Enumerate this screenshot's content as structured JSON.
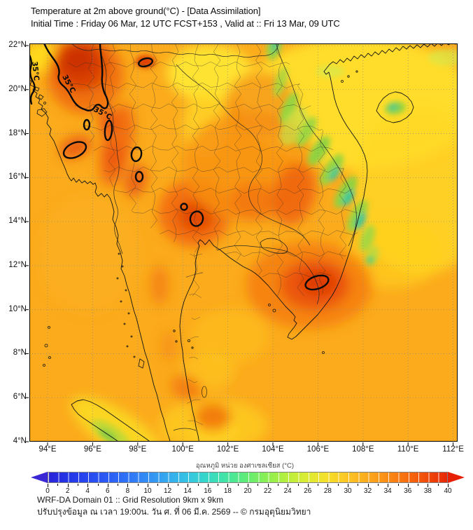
{
  "header": {
    "title": "Temperature at 2m above ground(°C) - [Data Assimilation]",
    "subtitle": "Initial Time : Friday 06 Mar, 12 UTC FCST+153 , Valid at :: Fri 13 Mar, 09 UTC"
  },
  "map": {
    "contour_label": "35°C",
    "lat_labels": [
      "22°N",
      "20°N",
      "18°N",
      "16°N",
      "14°N",
      "12°N",
      "10°N",
      "8°N",
      "6°N",
      "4°N"
    ],
    "lon_labels": [
      "94°E",
      "96°E",
      "98°E",
      "100°E",
      "102°E",
      "104°E",
      "106°E",
      "108°E",
      "110°E",
      "112°E"
    ]
  },
  "colorbar": {
    "label": "อุณหภูมิ หน่วย องศาเซลเซียส (°C)",
    "min": 0,
    "max": 40,
    "major_step": 2,
    "minor_step": 1,
    "ticks": [
      0,
      2,
      4,
      6,
      8,
      10,
      12,
      14,
      16,
      18,
      20,
      22,
      24,
      26,
      28,
      30,
      32,
      34,
      36,
      38,
      40
    ],
    "arrow_left_color": "#3a28d4",
    "arrow_right_color": "#e62004",
    "stops": [
      {
        "t": 0,
        "c": "#2a23d8"
      },
      {
        "t": 2,
        "c": "#2335e6"
      },
      {
        "t": 4,
        "c": "#2748ef"
      },
      {
        "t": 6,
        "c": "#2b5cf4"
      },
      {
        "t": 8,
        "c": "#2f74f6"
      },
      {
        "t": 10,
        "c": "#338ff4"
      },
      {
        "t": 12,
        "c": "#35aaee"
      },
      {
        "t": 14,
        "c": "#35c4e2"
      },
      {
        "t": 16,
        "c": "#37d9c6"
      },
      {
        "t": 18,
        "c": "#45e5a0"
      },
      {
        "t": 20,
        "c": "#63ec74"
      },
      {
        "t": 22,
        "c": "#8eef51"
      },
      {
        "t": 24,
        "c": "#b9ef3e"
      },
      {
        "t": 26,
        "c": "#ddeb33"
      },
      {
        "t": 28,
        "c": "#f6df2b"
      },
      {
        "t": 30,
        "c": "#fcc524"
      },
      {
        "t": 32,
        "c": "#fbaa1d"
      },
      {
        "t": 34,
        "c": "#f98c16"
      },
      {
        "t": 36,
        "c": "#f66c10"
      },
      {
        "t": 38,
        "c": "#f04a09"
      },
      {
        "t": 40,
        "c": "#e62706"
      }
    ]
  },
  "footer": {
    "line1": "WRF-DA Domain 01 :: Grid Resolution 9km x 9km",
    "line2": "ปรับปรุงข้อมูล ณ เวลา 19:00น. วัน ศ. ที่ 06 มี.ค. 2569 -- © กรมอุตุนิยมวิทยา"
  },
  "chart_data": {
    "type": "heatmap",
    "title": "Temperature at 2m above ground(°C) - [Data Assimilation]",
    "valid_time": "Fri 13 Mar, 09 UTC",
    "init_time": "Friday 06 Mar, 12 UTC",
    "forecast_hour": "FCST+153",
    "units": "°C",
    "lon_range": [
      93.2,
      112.3
    ],
    "lat_range": [
      3.9,
      22.1
    ],
    "lon_ticks": [
      94,
      96,
      98,
      100,
      102,
      104,
      106,
      108,
      110,
      112
    ],
    "lat_ticks": [
      22,
      20,
      18,
      16,
      14,
      12,
      10,
      8,
      6,
      4
    ],
    "colorbar_range": [
      0,
      40
    ],
    "highlight_contour_value": 35,
    "features": [
      {
        "name": "hot-region-upper-myanmar",
        "approx_lon": 96.0,
        "approx_lat": 20.8,
        "approx_value_c": "36+ (inside 35°C contour)"
      },
      {
        "name": "hot-spots-western-thailand-coast",
        "approx_lon": 98.0,
        "approx_lat": 16.5,
        "approx_value_c": "35"
      },
      {
        "name": "hot-region-central-thailand-bangkok",
        "approx_lon": 100.4,
        "approx_lat": 14.2,
        "approx_value_c": "35"
      },
      {
        "name": "hot-region-cambodia-s-vietnam",
        "approx_lon": 106.2,
        "approx_lat": 11.4,
        "approx_value_c": "35"
      },
      {
        "name": "cool-band-annamite-range-laos-vietnam",
        "approx_lon": 104.8,
        "approx_lat": 16.0,
        "approx_value_c": "20-26"
      },
      {
        "name": "cool-spot-hainan",
        "approx_lon": 110.4,
        "approx_lat": 18.6,
        "approx_value_c": "24-26"
      },
      {
        "name": "cool-area-sumatra-highlands",
        "approx_lon": 97.4,
        "approx_lat": 4.2,
        "approx_value_c": "24-28"
      },
      {
        "name": "background-sea",
        "approx_value_c": "30-32"
      },
      {
        "name": "yellow-warm-sea-gulf-of-tonkin-south-china-sea",
        "approx_value_c": "27-29"
      }
    ]
  }
}
